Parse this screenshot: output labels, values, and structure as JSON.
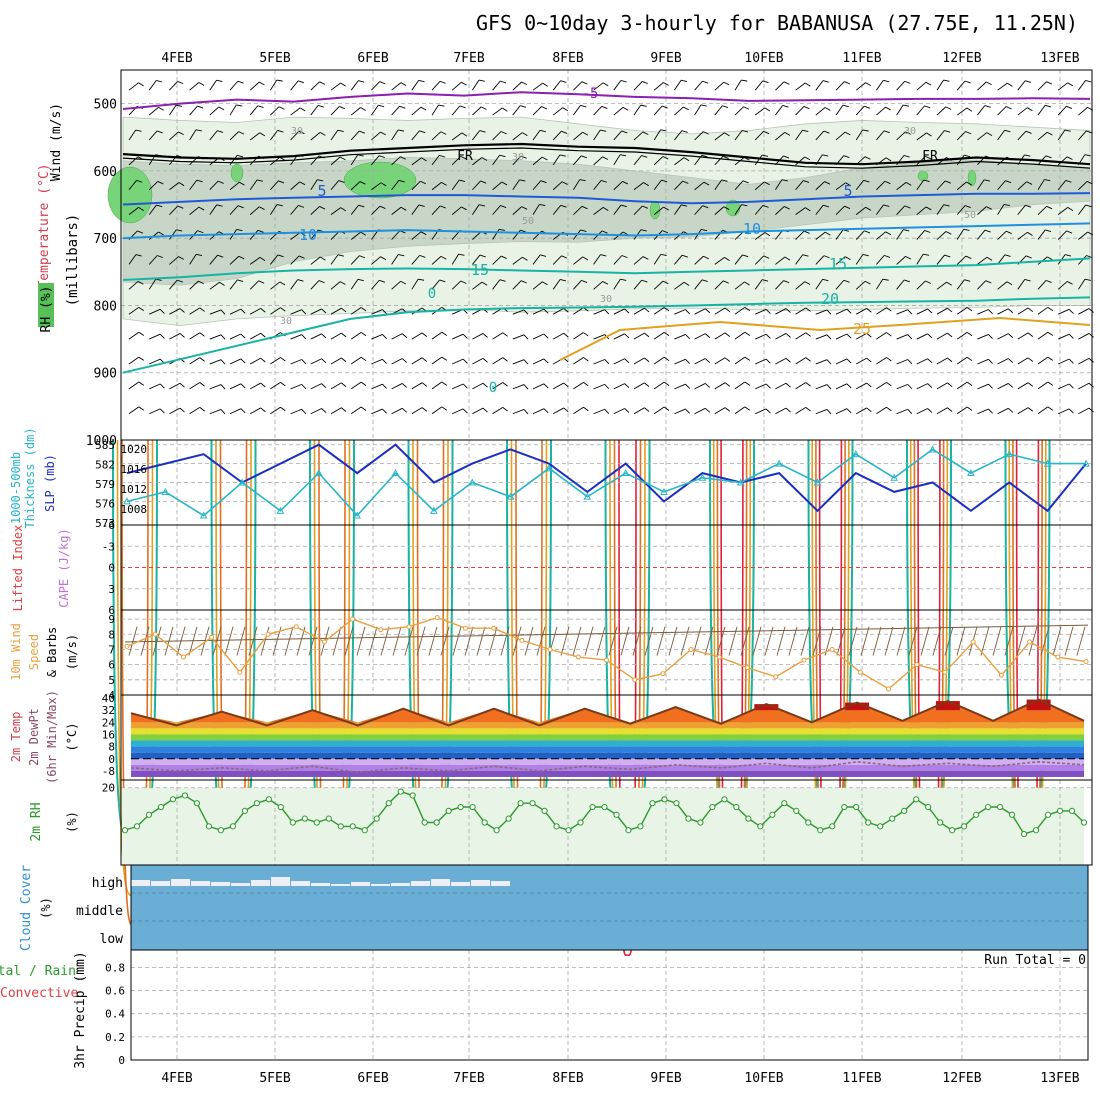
{
  "page": {
    "title": "GFS 0~10day 3-hourly for BABANUSA (27.75E, 11.25N)",
    "colors": {
      "grid": "#a8a8a8",
      "purple": "#8a1fb0",
      "black": "#000000",
      "blue": "#1e5ad6",
      "lblue": "#1e90e0",
      "teal": "#17b3a3",
      "green": "#1fb060",
      "orange": "#e0a020",
      "red": "#e0203a",
      "slp": "#1a2fbf",
      "thick": "#26b6c8",
      "wind": "#e8a040",
      "rh": "#2a9a2a",
      "cloud": "#6aaed6"
    }
  },
  "chart_data": [
    {
      "type": "line",
      "name": "upper-air cross-section",
      "ylabel_lines": [
        "Wind (m/s)",
        "Temperature (°C)",
        "RH (%)",
        "(millibars)"
      ],
      "ylabel_chars": "(millibars)",
      "yticks": [
        "500",
        "600",
        "700",
        "800",
        "900",
        "1000"
      ],
      "ylim": [
        450,
        1000
      ],
      "xticks": [
        "4FEB",
        "5FEB",
        "6FEB",
        "7FEB",
        "8FEB",
        "9FEB",
        "10FEB",
        "11FEB",
        "12FEB",
        "13FEB"
      ],
      "contour_labels": [
        "-5",
        "FR",
        "FR",
        "5",
        "5",
        "10",
        "10",
        "15",
        "15",
        "20",
        "25",
        "30",
        "30",
        "30",
        "30",
        "30",
        "50",
        "50",
        "0",
        "0"
      ],
      "isotherms": [
        {
          "name": "-5",
          "color": "purple",
          "values": [
            508,
            500,
            494,
            497,
            490,
            485,
            488,
            483,
            486,
            490,
            492,
            496,
            495,
            494,
            493,
            493,
            492,
            493
          ]
        },
        {
          "name": "FR",
          "color": "black",
          "values": [
            575,
            580,
            582,
            578,
            570,
            566,
            562,
            560,
            564,
            566,
            572,
            580,
            588,
            590,
            586,
            580,
            584,
            590
          ]
        },
        {
          "name": "5",
          "color": "blue",
          "values": [
            650,
            646,
            642,
            640,
            638,
            636,
            636,
            638,
            640,
            645,
            648,
            646,
            642,
            638,
            636,
            634,
            634,
            633
          ]
        },
        {
          "name": "10",
          "color": "lblue",
          "values": [
            700,
            696,
            694,
            692,
            690,
            688,
            690,
            692,
            694,
            696,
            694,
            690,
            688,
            686,
            684,
            682,
            680,
            678
          ]
        },
        {
          "name": "15",
          "color": "teal",
          "values": [
            762,
            758,
            752,
            748,
            746,
            745,
            746,
            748,
            750,
            752,
            750,
            748,
            746,
            744,
            742,
            740,
            735,
            730
          ]
        },
        {
          "name": "20",
          "color": "teal",
          "values": [
            900,
            880,
            860,
            840,
            820,
            810,
            806,
            804,
            803,
            802,
            800,
            798,
            796,
            795,
            794,
            793,
            790,
            788
          ]
        }
      ]
    },
    {
      "type": "line",
      "name": "slp and thickness",
      "ylabel_lines": [
        "1000-500mb",
        "Thickness (dm)",
        "SLP (mb)"
      ],
      "left_ticks": [
        "585",
        "582",
        "579",
        "576",
        "573"
      ],
      "right_ticks": [
        "1020",
        "1016",
        "1012",
        "1008"
      ],
      "ylim": [
        1003,
        1021
      ],
      "series": [
        {
          "name": "SLP (mb)",
          "color": "slp",
          "values": [
            1014,
            1016,
            1018,
            1012,
            1016,
            1020,
            1014,
            1020,
            1012,
            1016,
            1019,
            1016,
            1010,
            1016,
            1008,
            1014,
            1012,
            1014,
            1006,
            1014,
            1010,
            1012,
            1006,
            1012,
            1006,
            1016
          ]
        },
        {
          "name": "Thickness (dm)",
          "color": "thick",
          "values": [
            1008,
            1010,
            1005,
            1012,
            1006,
            1014,
            1005,
            1014,
            1006,
            1012,
            1009,
            1015,
            1009,
            1014,
            1010,
            1013,
            1012,
            1016,
            1012,
            1018,
            1013,
            1019,
            1014,
            1018,
            1016,
            1016
          ]
        }
      ]
    },
    {
      "type": "line",
      "name": "cape and lifted index",
      "ylabel_lines": [
        "Lifted Index",
        "CAPE (J/kg)"
      ],
      "yticks": [
        "-6",
        "-3",
        "0",
        "3",
        "6"
      ],
      "ylim": [
        -6,
        6
      ],
      "reference_line": 0
    },
    {
      "type": "line",
      "name": "10m wind",
      "ylabel_lines": [
        "10m Wind",
        "Speed",
        "& Barbs",
        "(m/s)"
      ],
      "yticks": [
        "4",
        "5",
        "6",
        "7",
        "8",
        "9"
      ],
      "ylim": [
        4,
        9.6
      ],
      "series": [
        {
          "name": "10m Wind Speed",
          "color": "wind",
          "values": [
            7.2,
            8,
            6.5,
            7.8,
            5.5,
            8,
            8.5,
            7.5,
            9,
            8.3,
            8.5,
            9.1,
            8.4,
            8.4,
            7.6,
            7,
            6.5,
            6.3,
            5,
            5.4,
            7,
            6.5,
            5.8,
            5.2,
            6.3,
            7,
            5.5,
            4.4,
            6,
            5.5,
            7.5,
            5.3,
            7.5,
            6.5,
            6.2
          ]
        }
      ]
    },
    {
      "type": "area",
      "name": "2m temperature",
      "ylabel_lines": [
        "2m Temp",
        "2m DewPt",
        "(6hr Min/Max)",
        "(°C)"
      ],
      "yticks": [
        "40",
        "32",
        "24",
        "16",
        "8",
        "0",
        "-8"
      ],
      "ylim": [
        -14,
        42
      ],
      "series": [
        {
          "name": "2m Temp",
          "color": "#7a3a1a",
          "values": [
            30,
            22,
            31,
            22,
            32,
            22,
            33,
            22,
            33,
            22,
            33,
            23,
            34,
            23,
            36,
            24,
            37,
            25,
            38,
            25,
            39,
            25
          ]
        },
        {
          "name": "2m DewPt",
          "color": "#8a6a7a",
          "values": [
            -6,
            -8,
            -6,
            -8,
            -5,
            -9,
            -6,
            -8,
            -5,
            -8,
            -5,
            -7,
            -4,
            -6,
            -3,
            -6,
            -2,
            -5,
            -3,
            -5,
            -2,
            -4
          ]
        }
      ]
    },
    {
      "type": "area",
      "name": "2m relative humidity",
      "ylabel_lines": [
        "2m RH",
        "(%)"
      ],
      "yticks": [
        "20"
      ],
      "ylim": [
        0,
        22
      ],
      "series": [
        {
          "name": "2m RH",
          "color": "rh",
          "values": [
            9,
            10,
            13,
            15,
            17,
            18,
            16,
            10,
            9,
            10,
            14,
            16,
            17,
            15,
            11,
            12,
            11,
            12,
            10,
            10,
            9,
            12,
            16,
            19,
            18,
            11,
            11,
            14,
            15,
            15,
            11,
            9,
            12,
            16,
            16,
            14,
            10,
            9,
            11,
            15,
            15,
            13,
            9,
            10,
            16,
            17,
            16,
            12,
            11,
            15,
            17,
            15,
            12,
            10,
            13,
            16,
            14,
            11,
            9,
            10,
            15,
            15,
            11,
            10,
            12,
            14,
            17,
            15,
            11,
            9,
            10,
            13,
            15,
            15,
            13,
            8,
            9,
            13,
            14,
            14,
            11
          ]
        }
      ]
    },
    {
      "type": "bar",
      "name": "cloud cover",
      "ylabel_lines": [
        "Cloud Cover",
        "(%)"
      ],
      "levels": [
        "high",
        "middle",
        "low"
      ],
      "high_cloud_gaps": [
        5,
        4,
        6,
        4,
        3,
        2,
        5,
        8,
        4,
        2,
        1,
        3,
        1,
        2,
        4,
        6,
        3,
        5,
        4
      ]
    },
    {
      "type": "bar",
      "name": "3hr precipitation",
      "ylabel_lines": [
        "Total / Rain",
        "Convective",
        "3hr Precip (mm)"
      ],
      "yticks": [
        "0",
        "0.2",
        "0.4",
        "0.6",
        "0.8"
      ],
      "ylim": [
        0,
        0.95
      ],
      "annotation": "Run Total = 0",
      "values": []
    }
  ]
}
